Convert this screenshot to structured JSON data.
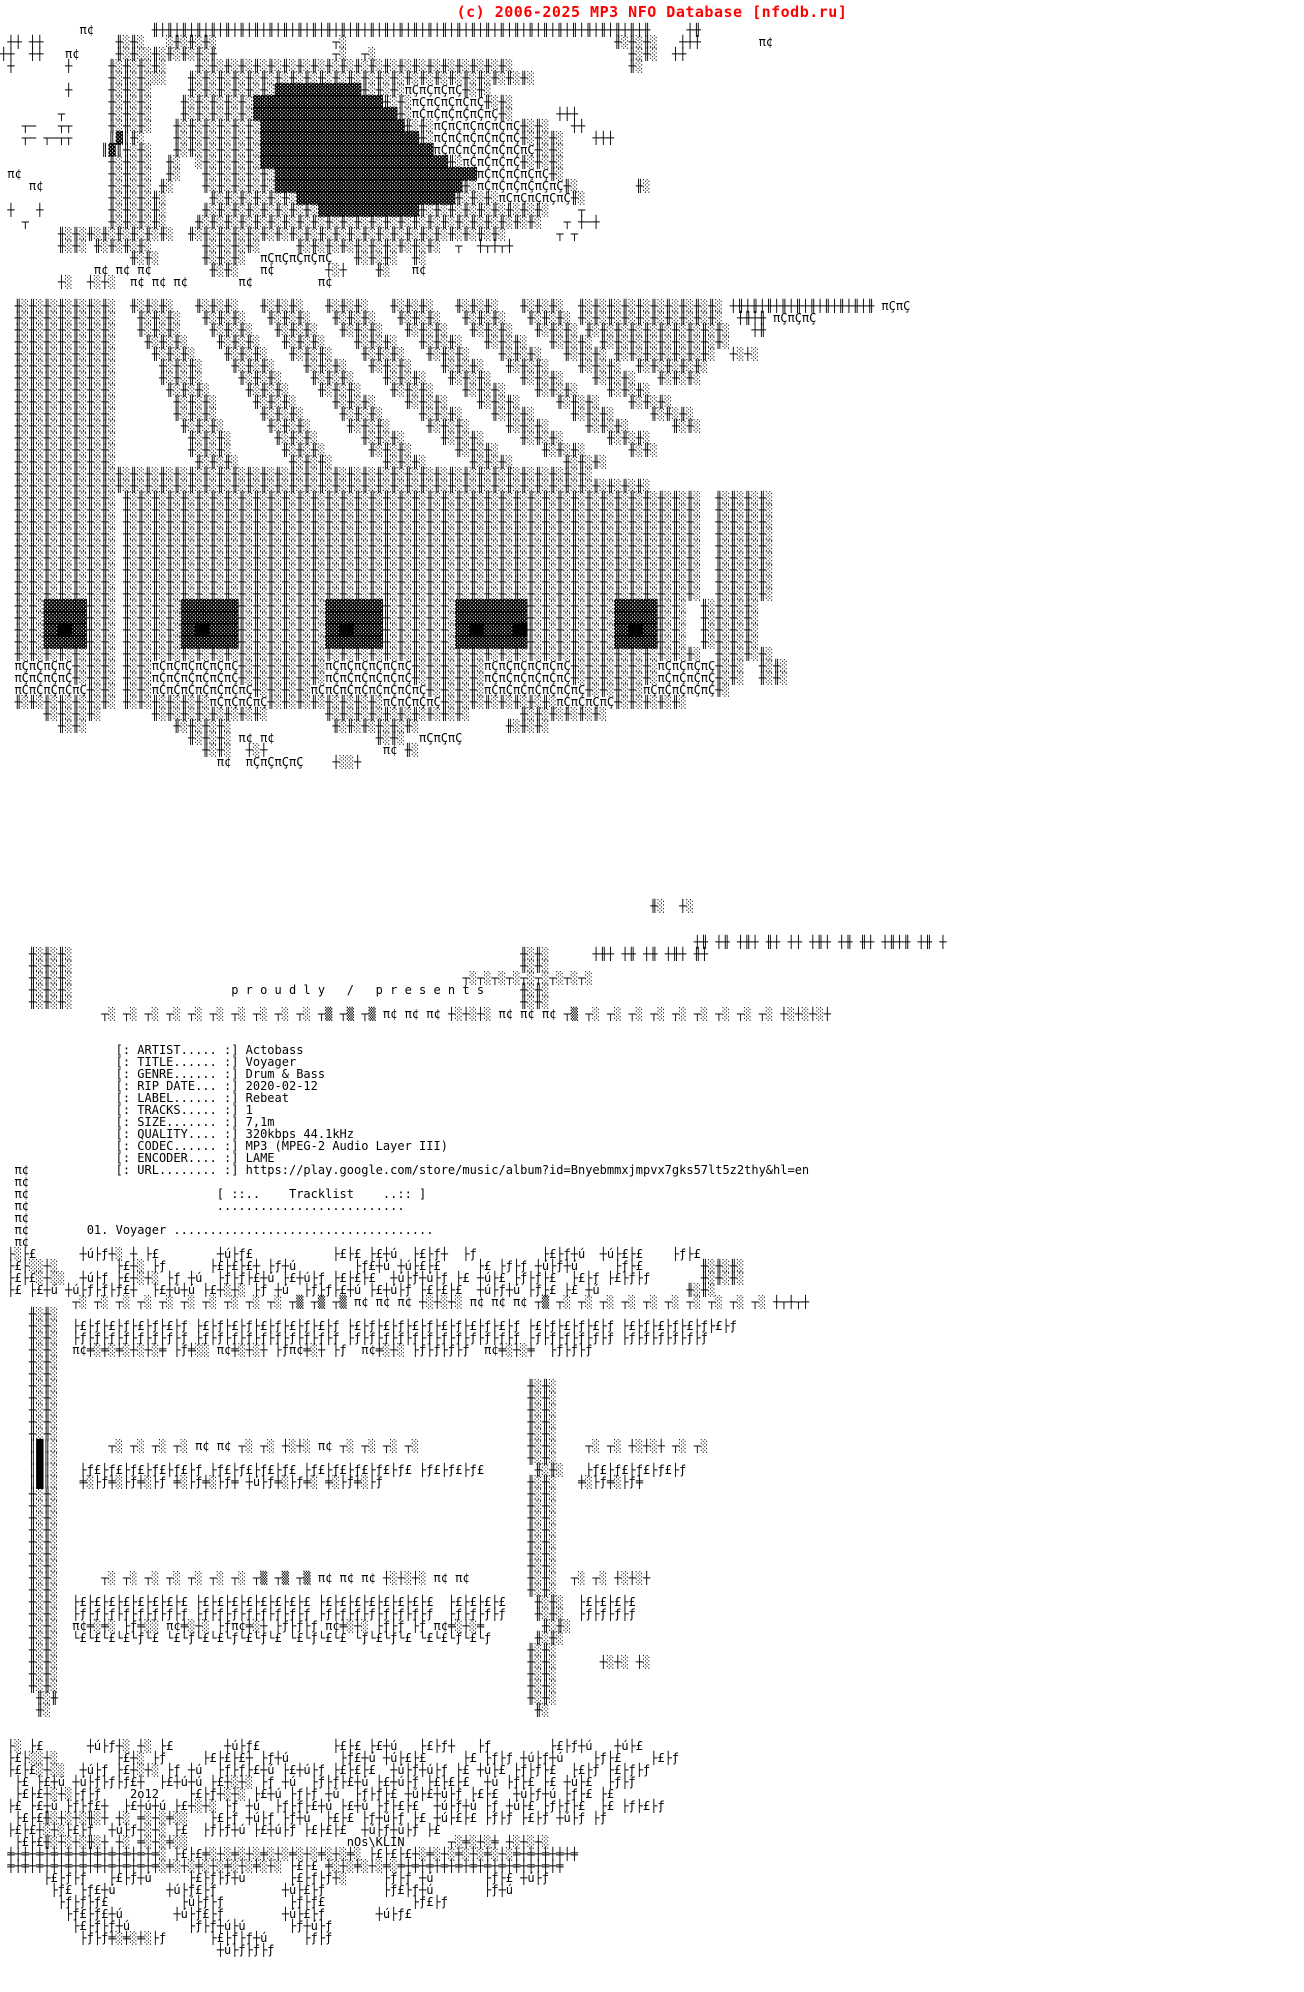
{
  "page": {
    "title_bar": "(c) 2006-2025 MP3 NFO Database [nfodb.ru]",
    "title_color": "#ff0000",
    "background": "#ffffff",
    "text_color": "#000000"
  },
  "release": {
    "artist": "Actobass",
    "title": "Voyager",
    "genre": "Drum & Bass",
    "rip_date": "2020-02-12",
    "label": "Rebeat",
    "tracks": "1",
    "size": "7,1m",
    "quality": "320kbps 44.1kHz",
    "codec": "MP3 (MPEG-2 Audio Layer III)",
    "encoder": "LAME",
    "url": "https://play.google.com/store/music/album?id=Bnyebmmxjmpvx7gks57lt5z2thy&hl=en"
  },
  "presents_line": "p r o u d l y   /   p r e s e n t s",
  "tracklist": {
    "header": "[ ::..    Tracklist    ..:: ]",
    "entries": [
      {
        "no": "01",
        "title": "Voyager"
      }
    ]
  },
  "credits": {
    "year_tag": "2o12",
    "artgroup_tag": "nOs\\KLIN"
  },
  "nfo": {
    "lines": [
      "           π¢        ╫┼╫┼╫┼╫┼╫┼╫┼╫┼╫┼╫┼╫┼╫┼╫┼╫┼╫┼╫┼╫┼╫┼╫┼╫┼╫┼╫┼╫┼╫┼╫┼╫┼╫┼╫┼╫┼╫┼╫┼╫┼╫┼╫┼╫┼╫     ┼╫",
      " ┼┼ ┼┼          ╫░╫░   ░╫░╫░╫░                ┬░                                     ╫░╫░╫░   ┼┼┼        π¢",
      "┼┼  ┼┼   π¢     ╫░╫░░╫░╫░╫░╫░╫                ┬░  ┬░                                   ╫░╫░  ┼┼",
      " ┼       ┼     ╫░╫░╫░╫░    ╫░╫░╫░╫░╫░╫░╫░╫░╫░╫░╫░╫░╫░╫░╫░╫░╫░╫░╫░╫░╫░╫░                ╫░",
      "               ╫░╫░╫░░░   ╫░╫░╫░╫░╫░╫░╫░╫░╫░╫░╫░╫░╫░╫░╫░╫░╫░╫░╫░╫░╫░╫░╫░╫░",
      "         ┼     ╫░╫░╫░     ╫░╫░╫░╫░╫░╫░▓▓▓▓▓▓▓▓▓▓▓▓╫░╫░╫░πÇπÇπÇπÇ╫░╫░",
      "               ╫░╫░╫░    ╫░╫░╫░╫░╫░▓▓▓▓▓▓▓▓▓▓▓▓▓▓▓▓▓▓╫░╫░πÇπÇπÇπÇπÇ╫░╫░",
      "        ┬      ╫░╫░╫░    ╫░╫░╫░╫░╫░▓▓▓▓▓▓▓▓▓▓▓▓▓▓▓▓▓▓▓▓╫░πÇπÇπÇπÇπÇπÇ╫░      ┼┼┼",
      "   ┬─   ┬┬     ╫░╫░╫░   ╫░╫░╫░╫░╫░╫░▓▓▓▓▓▓▓▓▓▓▓▓▓▓▓▓▓▓▓▓╫░╫░πÇπÇπÇπÇπÇπÇ╫░╫░   ┼┼",
      "   ┬─ ┬─┬┬     ║▓║╫░    ╫░╫░╫░╫░╫░╫░▓▓▓▓▓▓▓▓▓▓▓▓▓▓▓▓▓▓▓▓▓▓╫░πÇπÇπÇπÇπÇπÇ╫░╫░╫░    ┼┼┼",
      "              ║▓║╫░╫░   ╫░╫░╫░╫░╫░╫░▓▓▓▓▓▓▓▓▓▓▓▓▓▓▓▓▓▓▓▓▓▓▓▓πÇπÇπÇπÇπÇπÇπÇ╫░╫░",
      "               ╫░╫░╫░  ╫░  ░╫░╫░╫░╫░▓▓▓▓▓▓▓▓▓▓▓▓▓▓▓▓▓▓▓▓▓▓▓▓▓▓╫░πÇπÇπÇπÇ╫░╫░╫░",
      " π¢            ╫░╫░╫░  ╫░   ╫░╫░╫░╫░╫░▓▓▓▓▓▓▓▓▓▓▓▓▓▓▓▓▓▓▓▓▓▓▓▓▓▓▓▓πÇπÇπÇπÇπÇ╫░",
      "    π¢         ╫░╫░╫░ ╫░    ╫░╫░╫░╫░╫░▓▓▓▓▓▓▓▓▓▓▓▓▓▓▓▓▓▓▓▓▓▓▓▓▓▓╫░πÇπÇπÇπÇπÇπÇ╫░        ╫░",
      "               ╫░╫░╫░╫░      ╫░╫░╫░╫░╫░╫░▓▓▓▓▓▓▓▓▓▓▓▓▓▓▓▓▓▓▓▓▓▓╫░╫░╫░πÇπÇπÇπÇπÇ╫░",
      " ┼   ┼         ╫░╫░╫░╫░     ╫░╫░╫░╫░╫░╫░╫░╫░▓▓▓▓▓▓▓▓▓▓▓▓▓▓╫░╫░╫░╫░╫░╫░╫░╫░╫░    ┬",
      "   ┬           ╫░╫░╫░╫░    ╫░╫░╫░╫░╫░╫░╫░╫░╫░╫░╫░╫░╫░╫░╫░╫░╫░╫░╫░╫░╫░╫░╫░╫░   ┬ ┼─┼",
      "        ╫░╫░╫░╫░╫░╫░╫░╫░  ╫░╫░╫░╫░╫░╫░╫░╫░╫░╫░╫░╫░╫░╫░╫░╫░╫░╫░╫░╫░╫░╫░       ┬ ┬",
      "        ╫░╫░ ╫░╫░╫░╫░       ╫░╫░╫░╫░     ╫░╫░╫░╫░╫░╫░╫░╫░╫░╫░  ┬  ┼┬┼┬┼",
      "                  ╫░╫░      ╫░╫░╫░  πÇπÇπÇπÇπÇ   ╫░╫░╫░  ╫░",
      "             π¢ π¢ π¢        ╫░╫░   π¢       ┼░┼    ╫░   π¢",
      "        ┼░  ┼░┼░  π¢ π¢ π¢       π¢         π¢",
      "",
      "  ╫░╫░╫░╫░╫░╫░╫░  ╫░╫░╫░   ╫░╫░╫░   ╫░╫░╫░   ╫░╫░╫░   ╫░╫░╫░   ╫░╫░╫░   ╫░╫░╫░  ╫░╫░╫░╫░╫░╫░╫░╫░╫░╫░ ┼╫┼╫┼╫┼╫┼╫┼╫┼╫┼╫┼╫┼╫ πÇπÇ",
      "  ╫░╫░╫░╫░╫░╫░╫░   ╫░╫░╫░   ╫░╫░╫░   ╫░╫░╫░   ╫░╫░╫░   ╫░╫░╫░   ╫░╫░╫░   ╫░╫░╫░ ╫░╫░╫░╫░╫░╫░╫░╫░╫░╫░  ┼╫┼╫ πÇπÇπÇ",
      "  ╫░╫░╫░╫░╫░╫░╫░   ╫░╫░╫░    ╫░╫░╫░   ╫░╫░╫░   ╫░╫░╫░   ╫░╫░╫░   ╫░╫░╫░   ╫░╫░╫░ ╫░╫░╫░╫░╫░╫░╫░╫░╫░╫░   ┼╫",
      "  ╫░╫░╫░╫░╫░╫░╫░    ╫░╫░╫░    ╫░╫░╫░   ╫░╫░╫░    ╫░╫░╫░   ╫░╫░╫░   ╫░╫░╫░   ╫░╫░╫░ ╫░╫░╫░╫░╫░╫░╫░╫░╫░",
      "  ╫░╫░╫░╫░╫░╫░╫░     ╫░╫░╫░    ╫░╫░╫░   ╫░╫░╫░    ╫░╫░╫░   ╫░╫░╫░    ╫░╫░╫░   ╫░╫░╫░ ╫░╫░╫░╫░╫░╫░╫░  ┼░┼░",
      "  ╫░╫░╫░╫░╫░╫░╫░      ╫░╫░╫░    ╫░╫░╫░    ╫░╫░╫░   ╫░╫░╫░    ╫░╫░╫░   ╫░╫░╫░    ╫░╫░╫░  ╫░╫░╫░╫░╫░",
      "  ╫░╫░╫░╫░╫░╫░╫░      ╫░╫░╫░     ╫░╫░╫░    ╫░╫░╫░    ╫░╫░╫░   ╫░╫░╫░    ╫░╫░╫░    ╫░╫░╫░   ╫░╫░╫░",
      "  ╫░╫░╫░╫░╫░╫░╫░       ╫░╫░╫░     ╫░╫░╫░    ╫░╫░╫░    ╫░╫░╫░    ╫░╫░╫░    ╫░╫░╫░    ╫░╫░╫░",
      "  ╫░╫░╫░╫░╫░╫░╫░        ╫░╫░╫░     ╫░╫░╫░     ╫░╫░╫░    ╫░╫░╫░    ╫░╫░╫░     ╫░╫░╫░    ╫░╫░╫░",
      "  ╫░╫░╫░╫░╫░╫░╫░        ╫░╫░╫░      ╫░╫░╫░     ╫░╫░╫░     ╫░╫░╫░    ╫░╫░╫░     ╫░╫░╫░     ╫░╫░╫░",
      "  ╫░╫░╫░╫░╫░╫░╫░         ╫░╫░╫░      ╫░╫░╫░     ╫░╫░╫░     ╫░╫░╫░     ╫░╫░╫░     ╫░╫░╫░      ╫░╫░",
      "  ╫░╫░╫░╫░╫░╫░╫░          ╫░╫░╫░      ╫░╫░╫░      ╫░╫░╫░     ╫░╫░╫░     ╫░╫░╫░      ╫░╫░╫░",
      "  ╫░╫░╫░╫░╫░╫░╫░          ╫░╫░╫░       ╫░╫░╫░      ╫░╫░╫░      ╫░╫░╫░      ╫░╫░╫░      ╫░╫░",
      "  ╫░╫░╫░╫░╫░╫░╫░           ╫░╫░╫░       ╫░╫░╫░       ╫░╫░╫░      ╫░╫░╫░       ╫░╫░╫░",
      "  ╫░╫░╫░╫░╫░╫░╫░╫░╫░╫░╫░╫░╫░╫░╫░╫░╫░╫░╫░╫░╫░╫░╫░╫░╫░╫░╫░╫░╫░╫░╫░╫░╫░╫░╫░╫░╫░╫░╫░╫░",
      "  ╫░╫░╫░╫░╫░╫░╫░╫░╫░╫░╫░╫░╫░╫░╫░╫░╫░╫░╫░╫░╫░╫░╫░╫░╫░╫░╫░╫░╫░╫░╫░╫░╫░╫░╫░╫░╫░╫░╫░╫░╫░╫░╫░╫░",
      "  ╫░╫░╫░╫░╫░╫░╫░ ╫░╫░╫░╫░╫░╫░╫░╫░╫░╫░╫░╫░╫░╫░╫░╫░╫░╫░╫░╫░╫░╫░╫░╫░╫░╫░╫░╫░╫░╫░╫░╫░╫░╫░╫░╫░╫░╫░╫░╫░  ╫░╫░╫░╫░",
      "  ╫░╫░╫░╫░╫░╫░╫░ ╫░╫░╫░╫░╫░╫░╫░╫░╫░╫░╫░╫░╫░╫░╫░╫░╫░╫░╫░╫░╫░╫░╫░╫░╫░╫░╫░╫░╫░╫░╫░╫░╫░╫░╫░╫░╫░╫░╫░╫░  ╫░╫░╫░╫░",
      "  ╫░╫░╫░╫░╫░╫░╫░ ╫░╫░╫░╫░╫░╫░╫░╫░╫░╫░╫░╫░╫░╫░╫░╫░╫░╫░╫░╫░╫░╫░╫░╫░╫░╫░╫░╫░╫░╫░╫░╫░╫░╫░╫░╫░╫░╫░╫░╫░  ╫░╫░╫░╫░",
      "  ╫░╫░╫░╫░╫░╫░╫░ ╫░╫░╫░╫░╫░╫░╫░╫░╫░╫░╫░╫░╫░╫░╫░╫░╫░╫░╫░╫░╫░╫░╫░╫░╫░╫░╫░╫░╫░╫░╫░╫░╫░╫░╫░╫░╫░╫░╫░╫░  ╫░╫░╫░╫░",
      "  ╫░╫░╫░╫░╫░╫░╫░ ╫░╫░╫░╫░╫░╫░╫░╫░╫░╫░╫░╫░╫░╫░╫░╫░╫░╫░╫░╫░╫░╫░╫░╫░╫░╫░╫░╫░╫░╫░╫░╫░╫░╫░╫░╫░╫░╫░╫░╫░  ╫░╫░╫░╫░",
      "  ╫░╫░╫░╫░╫░╫░╫░ ╫░╫░╫░╫░╫░╫░╫░╫░╫░╫░╫░╫░╫░╫░╫░╫░╫░╫░╫░╫░╫░╫░╫░╫░╫░╫░╫░╫░╫░╫░╫░╫░╫░╫░╫░╫░╫░╫░╫░╫░  ╫░╫░╫░╫░",
      "  ╫░╫░╫░╫░╫░╫░╫░ ╫░╫░╫░╫░╫░╫░╫░╫░╫░╫░╫░╫░╫░╫░╫░╫░╫░╫░╫░╫░╫░╫░╫░╫░╫░╫░╫░╫░╫░╫░╫░╫░╫░╫░╫░╫░╫░╫░╫░╫░  ╫░╫░╫░╫░",
      "  ╫░╫░╫░╫░╫░╫░╫░ ╫░╫░╫░╫░╫░╫░╫░╫░╫░╫░╫░╫░╫░╫░╫░╫░╫░╫░╫░╫░╫░╫░╫░╫░╫░╫░╫░╫░╫░╫░╫░╫░╫░╫░╫░╫░╫░╫░╫░╫░  ╫░╫░╫░╫░",
      "  ╫░╫░╫░╫░╫░╫░╫░ ╫░╫░╫░╫░╫░╫░╫░╫░╫░╫░╫░╫░╫░╫░╫░╫░╫░╫░╫░╫░╫░╫░╫░╫░╫░╫░╫░╫░╫░╫░╫░╫░╫░╫░╫░╫░╫░╫░╫░╫░  ╫░╫░╫░╫░",
      "  ╫░╫░▓▓▓▓▓▓╫░╫░ ╫░╫░╫░╫░▓▓▓▓▓▓▓▓╫░╫░╫░╫░╫░╫░▓▓▓▓▓▓▓▓╫░╫░╫░╫░╫░▓▓▓▓▓▓▓▓▓▓╫░╫░╫░╫░╫░╫░▓▓▓▓▓▓╫░╫░  ╫░╫░╫░╫░",
      "  ╫░╫░▓▓▓▓▓▓╫░╫░ ╫░╫░╫░╫░▓▓▓▓▓▓▓▓╫░╫░╫░╫░╫░╫░▓▓▓▓▓▓▓▓╫░╫░╫░╫░╫░▓▓▓▓▓▓▓▓▓▓╫░╫░╫░╫░╫░╫░▓▓▓▓▓▓╫░╫░  ╫░╫░╫░╫░",
      "  ╫░╫░▓▓██▓▓╫░╫░ ╫░╫░╫░╫░▓▓██▓▓▓▓╫░╫░╫░╫░╫░╫░▓▓██▓▓▓▓╫░╫░╫░╫░╫░▓▓██▓▓▓▓██╫░╫░╫░╫░╫░╫░▓▓██▓▓╫░╫░  ╫░╫░╫░╫░",
      "  ╫░╫░▓▓▓▓▓▓╫░╫░ ╫░╫░╫░╫░▓▓▓▓▓▓▓▓╫░╫░╫░╫░╫░╫░▓▓▓▓▓▓▓▓╫░╫░╫░╫░╫░▓▓▓▓▓▓▓▓▓▓╫░╫░╫░╫░╫░╫░▓▓▓▓▓▓╫░╫░  ╫░╫░╫░╫░",
      "  ╫░╫░╫░╫░╫░╫░╫░ ╫░╫░╫░╫░╫░╫░╫░╫░╫░╫░╫░╫░╫░╫░╫░╫░╫░╫░╫░╫░╫░╫░╫░╫░╫░╫░╫░╫░╫░╫░╫░╫░╫░╫░╫░╫░╫░╫░╫░╫░  ╫░╫░╫░╫░",
      "  πÇπÇπÇπÇ╫░╫░╫░ ╫░╫░πÇπÇπÇπÇπÇπÇ╫░╫░╫░╫░╫░╫░πÇπÇπÇπÇπÇπÇ╫░╫░╫░╫░╫░πÇπÇπÇπÇπÇπÇ╫░╫░╫░╫░╫░╫░πÇπÇπÇπÇ╫░╫░  ╫░╫░",
      "  πÇπÇπÇπÇ╫░╫░╫░ ╫░╫░πÇπÇπÇπÇπÇπÇ╫░╫░╫░╫░╫░╫░πÇπÇπÇπÇπÇπÇ╫░╫░╫░╫░╫░πÇπÇπÇπÇπÇπÇ╫░╫░╫░╫░╫░╫░πÇπÇπÇπÇ╫░╫░  ╫░╫░",
      "  πÇπÇπÇπÇπÇ╫░╫░ ╫░╫░πÇπÇπÇπÇπÇπÇπÇ╫░╫░╫░╫░πÇπÇπÇπÇπÇπÇπÇπÇ╫░╫░╫░╫░πÇπÇπÇπÇπÇπÇπÇ╫░╫░╫░╫░πÇπÇπÇπÇπÇ╫░",
      "  ╫░╫░╫░╫░╫░╫░╫░ ╫░╫░╫░╫░╫░╫░πÇπÇπÇπÇ╫░╫░╫░╫░╫░╫░╫░╫░πÇπÇπÇπÇ╫░╫░╫░╫░╫░╫░╫░╫░πÇπÇπÇπÇ╫░╫░╫░╫░╫░",
      "      ╫░╫░╫░╫░       ╫░╫░╫░╫░╫░╫░╫░╫░        ╫░╫░╫░╫░╫░╫░╫░╫░╫░╫░       ╫░╫░╫░╫░╫░╫░",
      "        ╫░╫░            ╫░╫░╫░╫░              ╫░╫░╫░╫░╫░╫░            ╫░╫░╫░",
      "                          ╫░╫░╫░ π¢ π¢              ╫░╫░  πÇπÇπÇ",
      "                            ╫░╫░  ┼░┼                π¢ ╫░",
      "                              π¢  πÇπÇπÇπÇ    ┼░░┼",
      "",
      "",
      "",
      "",
      "",
      "",
      "",
      "",
      "",
      "",
      "",
      "                                                                                          ╫░  ┼░",
      "",
      "",
      "                                                                                                ┼╫ ┼╫ ┼╫┼ ╫┼ ┼┼ ┼╫┼ ┼╫ ╫┼ ┼╫┼╫ ┼╫ ┼",
      "    ╫░╫░╫░                                                              ╫░╫░      ┼╫┼ ┼╫ ┼╫ ┼╫┼ ╫┼",
      "    ╫░╫░╫░                                                              ╫░╫░",
      "    ╫░╫░╫░                                                      ┬░┬░┬░┬░┬░┬░┬░┬░┬░",
      "    ╫░╫░╫░                      p r o u d l y   /   p r e s e n t s     ╫░╫░",
      "    ╫░╫░╫░                                                              ╫░╫░",
      "              ┬░ ┬░ ┬░ ┬░ ┬░ ┬░ ┬░ ┬░ ┬░ ┬░ ┬▒ ┬▒ ┬▒ π¢ π¢ π¢ ┼░┼░┼░ π¢ π¢ π¢ ┬▒ ┬░ ┬░ ┬░ ┬░ ┬░ ┬░ ┬░ ┬░ ┬░ ┼░┼░┼░┼",
      "",
      "",
      "                [: ARTIST..... :] Actobass",
      "                [: TITLE...... :] Voyager",
      "                [: GENRE...... :] Drum & Bass",
      "                [: RIP DATE... :] 2020-02-12",
      "                [: LABEL...... :] Rebeat",
      "                [: TRACKS..... :] 1",
      "                [: SIZE....... :] 7,1m",
      "                [: QUALITY.... :] 320kbps 44.1kHz",
      "                [: CODEC...... :] MP3 (MPEG-2 Audio Layer III)",
      "                [: ENCODER.... :] LAME",
      "  π¢            [: URL........ :] https://play.google.com/store/music/album?id=Bnyebmmxjmpvx7gks57lt5z2thy&hl=en",
      "  π¢",
      "  π¢                          [ ::..    Tracklist    ..:: ]",
      "  π¢                          ..........................",
      "  π¢",
      "  π¢        01. Voyager ....................................",
      "  π¢",
      " ├░├£      ┼ú├ƒ┼░ ┼ ├£        ┼ú├ƒ£           ├£├£ ├£┼ú  ├£├ƒ┼  ├ƒ         ├£├ƒ┼ú  ┼ú├£├£    ├ƒ├£",
      " ├£├░░┼░        ├£┼░ ├ƒ      ├£├£├£┼ ├ƒ┼ú        ├ƒ£┼ú ┼ú├£├£     ├£ ├ƒ├ƒ ┼ú├ƒ┼ú     ├ƒ├£        ╫░╫░╫░",
      " ├£├£░┼░░  ┼ú├ƒ ├£┼░┼░ ├ƒ ┼ú  ├ƒ├ƒ├£┼ú ├£┼ú├ƒ ├£├£├£  ┼ú├ƒ┼ú├ƒ ├£ ┼ú├£ ├ƒ├ƒ├£  ├£├ƒ ├£├ƒ├ƒ       ╫░╫░╫░",
      " ├£ ├£┼ú ┼ú├ƒ├ƒ├ƒ£┼  ├£┼ú┼ú ├£┼░┼░ ├ƒ ┼ú  ├ƒ├ƒ├£┼ú ├£┼ú├ƒ ├£├£├£  ┼ú├ƒ┼ú ├ƒ├£ ├£ ┼ú            ╫░╫░",
      "          ┬░ ┬░ ┬░ ┬░ ┬░ ┬░ ┬░ ┬░ ┬░ ┬░ ┬▒ ┬▒ ┬▒ π¢ π¢ π¢ ┼░┼░┼░ π¢ π¢ π¢ ┬▒ ┬░ ┬░ ┬░ ┬░ ┬░ ┬░ ┬░ ┬░ ┬░ ┬░ ┼┬┼┬┼",
      "    ╫░╫░",
      "    ╫░╫░  ├£├ƒ├£├ƒ├£├ƒ├£├ƒ ├£├ƒ├£├ƒ├£├ƒ├£├ƒ├£├ƒ ├£├ƒ├£├ƒ├£├ƒ├£├ƒ├£├ƒ├£├ƒ ├£├ƒ├£├ƒ├£├ƒ ├£├ƒ├£├ƒ├£├ƒ├£├ƒ",
      "    ╫░╫░  ├ƒ├ƒ├ƒ├ƒ├ƒ├ƒ├ƒ├ƒ ├ƒ├ƒ├ƒ├ƒ├ƒ├ƒ├ƒ├ƒ├ƒ├ƒ ├ƒ├ƒ├ƒ├ƒ├ƒ├ƒ├ƒ├ƒ├ƒ├ƒ├ƒ├ƒ ├ƒ├ƒ├ƒ├ƒ├ƒ├ƒ ├ƒ├ƒ├ƒ├ƒ├ƒ├ƒ",
      "    ╫░╫░  π¢╪░╪░╪░┼░┼░╪ ├ƒ╪░░ π¢╪░┼░┼ ├ƒπ¢╪░┼ ├ƒ  π¢╪░┼░ ├ƒ├ƒ├ƒ├ƒ  π¢╪░┼░╪  ├ƒ├ƒ├ƒ",
      "    ╫░╫░",
      "    ╫░╫░",
      "    ╫░╫░                                                                 ╫░╫░",
      "    ╫░╫░                                                                 ╫░╫░",
      "    ╫░╫░                                                                 ╫░╫░",
      "    ╫░╫░                                                                 ╫░╫░",
      "    ╫░╫░                                                                 ╫░╫░",
      "    ║█║░       ┬░ ┬░ ┬░ ┬░ π¢ π¢ ┬░ ┬░ ┼░┼░ π¢ ┬░ ┬░ ┬░ ┬░               ╫░╫░    ┬░ ┬░ ┼░┼░┼ ┬░ ┬░",
      "    ║█║░                                                                 ╫░╫░",
      "    ║█║░   ├ƒ£├ƒ£├ƒ£├ƒ£├ƒ£├ƒ ├ƒ£├ƒ£├ƒ£├ƒ£ ├ƒ£├ƒ£├ƒ£├ƒ£├ƒ£ ├ƒ£├ƒ£├ƒ£       ╫░╫░   ├ƒ£├ƒ£├ƒ£├ƒ£├ƒ",
      "    ║█║░   ╪░├ƒ╪░├ƒ╪░├ƒ ╪░├ƒ╪░├ƒ╪ ┼ú├ƒ╪░├ƒ╪░ ╪░├ƒ╪░├ƒ                    ╫░╫░   ╪░├ƒ╪░├ƒ╪",
      "    ╫░╫░                                                                 ╫░╫░",
      "    ╫░╫░                                                                 ╫░╫░",
      "    ╫░╫░                                                                 ╫░╫░",
      "    ╫░╫░                                                                 ╫░╫░",
      "    ╫░╫░                                                                 ╫░╫░",
      "    ╫░╫░                                                                 ╫░╫░",
      "    ╫░╫░                                                                 ╫░╫░",
      "    ╫░╫░      ┬░ ┬░ ┬░ ┬░ ┬░ ┬░ ┬░ ┬▒ ┬▒ ┬▒ π¢ π¢ π¢ ┼░┼░┼░ π¢ π¢        ╫░╫░  ┬░ ┬░ ┼░┼░┼",
      "    ╫░╫░                                                                 ╫░╫░",
      "    ╫░╫░  ├£├£├£├£├£├£├£├£ ├£├£├£├£├£├£├£├£ ├£├£├£├£├£├£├£├£  ├£├£├£├£    ╫░╫░  ├£├£├£├£",
      "    ╫░╫░  ├ƒ├ƒ├ƒ├ƒ├ƒ├ƒ├ƒ├ƒ ├ƒ├ƒ├ƒ├ƒ├ƒ├ƒ├ƒ├ƒ ├ƒ├ƒ├ƒ├ƒ├ƒ├ƒ├ƒ├ƒ  ├ƒ├ƒ├ƒ├ƒ    ╫░╫░  ├ƒ├ƒ├ƒ├ƒ",
      "    ╫░╫░  π¢╪░╪░ ├ƒ╪░░ π¢╪░┼░ ├ƒπ¢╪░┼ ├ƒ├ƒ├ƒ π¢╪░┼░ ├ƒ├ƒ ├ƒ π¢╪░┼░╪        ╫░╫░",
      "    ╫░╫░  └£└£└£└£└ƒ└£ └£└ƒ└£└£└ƒ└£└ƒ└£ └£└ƒ└£└£ └ƒ└£└ƒ└£ └£└£└ƒ└£└ƒ      ╫░╫░",
      "    ╫░╫░                                                                 ╫░╫░",
      "    ╫░╫░                                                                 ╫░╫░      ┼░┼░ ┼░",
      "    ╫░╫░                                                                 ╫░╫░",
      "    ╫░╫░                                                                 ╫░╫░",
      "     ╫░╫                                                                 ╫░╫░",
      "     ╫░                                                                   ╫░",
      "",
      "",
      " ├░ ├£      ┼ú├ƒ┼░ ┼░ ├£       ┼ú├ƒ£          ├£├£ ├£┼ú   ├£├ƒ┼   ├ƒ        ├£├ƒ┼ú   ┼ú├£",
      " ├£├░░┼░        ├£┼░ ├ƒ     ├£├£├£┼ ├ƒ┼ú       ├ƒ£┼ú ┼ú├£├£     ├£ ├ƒ├ƒ ┼ú├ƒ┼ú    ├ƒ├£    ├£├ƒ",
      " ├£├£░┼░░  ┼ú├ƒ ├£┼░┼░ ├ƒ ┼ú  ├ƒ├ƒ├£┼ú ├£┼ú├ƒ ├£├£├£  ┼ú├ƒ┼ú├ƒ ├£ ┼ú├£ ├ƒ├ƒ├£  ├£├ƒ ├£├ƒ├ƒ",
      "  ├£ ├£┼ú ┼ú├ƒ├ƒ├ƒ£┼  ├£┼ú┼ú ├£┼░┼░ ├ƒ ┼ú  ├ƒ├ƒ├£┼ú ├£┼ú├ƒ ├£├£├£  ┼ú ├ƒ├£ ├£ ┼ú├£  ├ƒ├ƒ",
      "  ├£├£┼░┼░├ƒ├ƒ    2o12    ├£├ƒ┼░┼░ ├£┼ú ├ƒ├ƒ ┼ú  ├ƒ├ƒ├£ ┼ú├£┼ú├ƒ ├£├£  ┼ú├ƒ┼ú ├ƒ├£ ├£",
      " ├£ ├£┼ú ├ƒ├ƒ£┼  ├£┼ú┼ú ├£┼░┼░ ├ƒ ┼ú  ├ƒ├ƒ├£┼ú ├£┼ú ├ƒ├£├£  ┼ú├ƒ┼ú ├ƒ ┼ú├£ ├ƒ├ƒ├£  ├£ ├ƒ├£├ƒ",
      "  ├£├£╫░┼░┼░╫░┼ ┼░ ╪░┼░╪░░   ├£├ƒ ┼ú├ƒ ├ƒ┼ú  ├£├£ ├ƒ┼ú├ƒ ├£ ┼ú├£├£ ├ƒ├ƒ ├£├ƒ ┼ú├ƒ ├ƒ",
      " ├£├£┼░┼░├£├ƒ  ┼ú├ƒ┼░┼░ ├£  ├ƒ├ƒ┼ú ├£┼ú├ƒ ├£├£├£  ┼ú├ƒ┼ú├ƒ ├£",
      "  ├£├£╫░┼░┼░╫░┼ ┼░ ╪░┼░╪░░                      nOs\\KLIN      ┬░╪░┼░╪ ┼░┼░┼░",
      " ╪┼╪┼╪┼╪┼╪┼╪┼╪┼╪┼╪┼╪┼╪░ ├£├£╪░┼░╪░┼░╪░┼░╪░┼░╪░┼░╪░ ├£├£├£┼░╪░┼░╪░┼░╪░┼░╪┼╪┼╪┼╪┼╪",
      " ╪┼╪┼╪┼╪┼╪┼╪┼╪┼╪┼╪┼╪┼╪░╪░┼░╪░┼░╪░┼░╪░┼░ ├£├£ ╪░┼░╪░┼░╪░╪┼╪┼╪┼╪┼╪┼╪┼╪┼╪┼╪┼╪┼╪┼╪",
      "      ├£├ƒ├ƒ   ├£├ƒ┼ú     ├£├ƒ├ƒ┼ú      ├£├ƒ├ƒ┼░     ├ƒ├ƒ ┼ú       ├ƒ├£ ┼ú├ƒ",
      "       ├ƒ£ ├ƒ£┼ú       ┼ú├ƒ£├ƒ         ┼ú├£├ƒ        ├ƒ£├ƒ┼ú       ├ƒ┼ú",
      "        ├ƒ├ƒ├ƒ£          ├ú├ƒ├ƒ         ├ƒ├ƒ£            ├ƒ£├ƒ",
      "         ├ƒ£├ƒ£┼ú       ┼ú├ƒ£├ƒ        ┼ú├£├ƒ       ┼ú├ƒ£",
      "          ├£├ƒ├ƒ┼ú        ├ƒ├ƒ┼ú├ú      ├ƒ┼ú├ƒ",
      "           ├ƒ├ƒ╪░╪░╪░├ƒ      ├£├ƒ├ƒ┼ú     ├ƒ├ƒ",
      "                              ┼ú├ƒ├ƒ├ƒ",
      "",
      "",
      ""
    ]
  }
}
